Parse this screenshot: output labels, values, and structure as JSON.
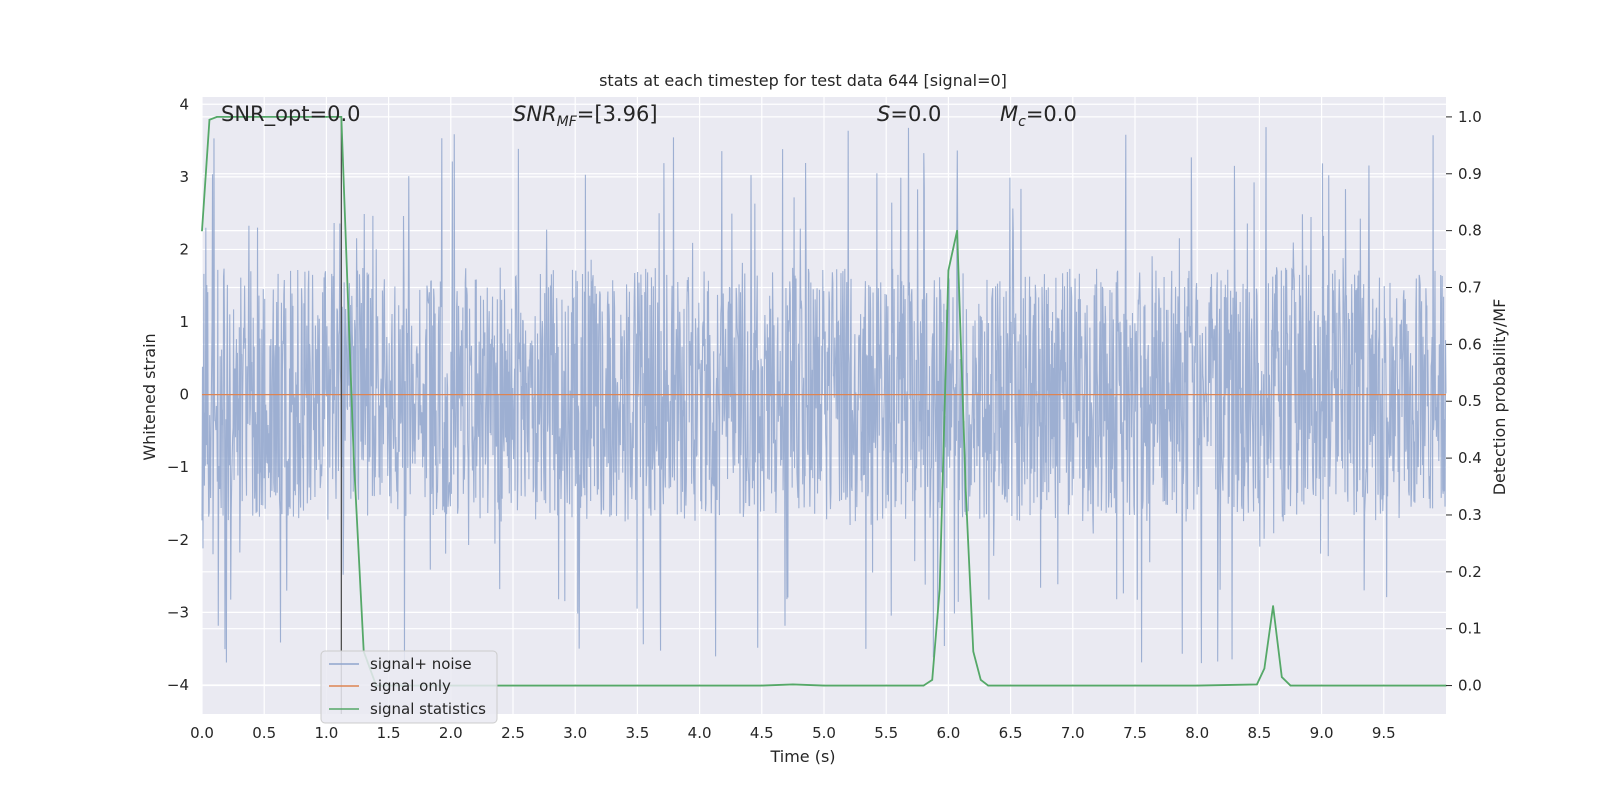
{
  "chart_data": {
    "type": "line",
    "title": "stats at each timestep for test data 644 [signal=0]",
    "xlabel": "Time (s)",
    "ylabel_left": "Whitened strain",
    "ylabel_right": "Detection probability/MF",
    "xlim": [
      0.0,
      10.0
    ],
    "ylim_left": [
      -4.4,
      4.1
    ],
    "ylim_right": [
      -0.05,
      1.035
    ],
    "x_ticks": [
      "0.0",
      "0.5",
      "1.0",
      "1.5",
      "2.0",
      "2.5",
      "3.0",
      "3.5",
      "4.0",
      "4.5",
      "5.0",
      "5.5",
      "6.0",
      "6.5",
      "7.0",
      "7.5",
      "8.0",
      "8.5",
      "9.0",
      "9.5"
    ],
    "y_left_ticks": [
      "−4",
      "−3",
      "−2",
      "−1",
      "0",
      "1",
      "2",
      "3",
      "4"
    ],
    "y_right_ticks": [
      "0.0",
      "0.1",
      "0.2",
      "0.3",
      "0.4",
      "0.5",
      "0.6",
      "0.7",
      "0.8",
      "0.9",
      "1.0"
    ],
    "grid": true,
    "legend_position": "lower-left",
    "annotations": {
      "snr_opt": "SNR_opt=0.0",
      "snr_mf_base": "SNR",
      "snr_mf_sub": "MF",
      "snr_mf_rest": "=[3.96]",
      "s_base": "S",
      "s_rest": "=0.0",
      "mc_base": "M",
      "mc_sub": "c",
      "mc_rest": "=0.0"
    },
    "marker_line_x": 1.12,
    "series": [
      {
        "name": "signal+ noise",
        "axis": "left",
        "color": "#8fa4cc",
        "kind": "dense-noise",
        "x_range": [
          0.0,
          10.0
        ],
        "amplitude_band": [
          -1.75,
          1.75
        ],
        "peak_range": [
          -3.7,
          3.7
        ]
      },
      {
        "name": "signal only",
        "axis": "left",
        "color": "#dd8452",
        "x": [
          0.0,
          10.0
        ],
        "y": [
          0.0,
          0.0
        ]
      },
      {
        "name": "signal statistics",
        "axis": "right",
        "color": "#55a868",
        "x": [
          0.0,
          0.06,
          0.12,
          0.25,
          0.5,
          0.75,
          1.0,
          1.12,
          1.22,
          1.3,
          1.4,
          1.5,
          2.0,
          3.0,
          4.0,
          4.5,
          4.75,
          5.0,
          5.5,
          5.8,
          5.87,
          5.93,
          6.0,
          6.07,
          6.14,
          6.2,
          6.26,
          6.32,
          6.5,
          7.0,
          7.5,
          8.0,
          8.48,
          8.54,
          8.61,
          8.68,
          8.75,
          9.0,
          9.5,
          10.0
        ],
        "y": [
          0.8,
          0.995,
          1.0,
          1.0,
          1.0,
          1.0,
          1.0,
          1.0,
          0.4,
          0.06,
          0.0,
          0.0,
          0.0,
          0.0,
          0.0,
          0.0,
          0.002,
          0.0,
          0.0,
          0.0,
          0.01,
          0.17,
          0.73,
          0.8,
          0.34,
          0.06,
          0.01,
          0.0,
          0.0,
          0.0,
          0.0,
          0.0,
          0.002,
          0.03,
          0.14,
          0.015,
          0.0,
          0.0,
          0.0,
          0.0
        ]
      }
    ]
  }
}
